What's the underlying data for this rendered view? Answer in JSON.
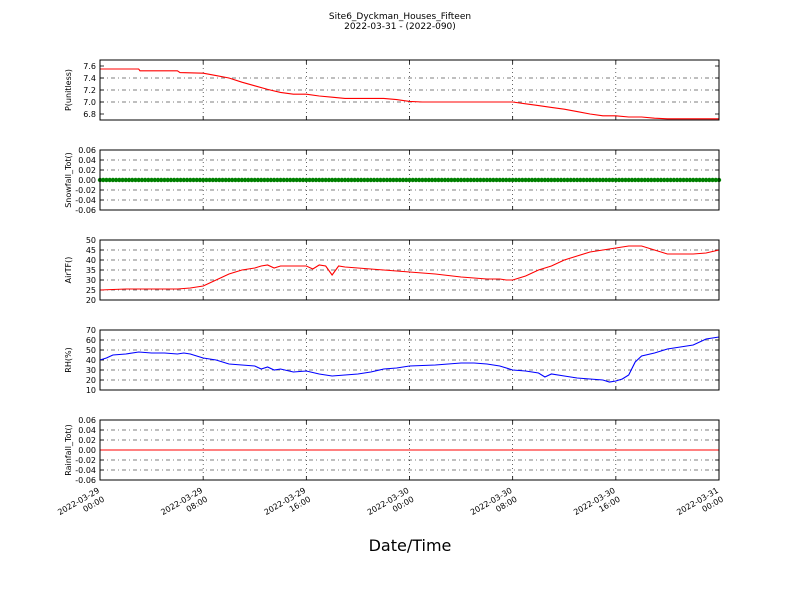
{
  "figure": {
    "title_line1": "Site6_Dyckman_Houses_Fifteen",
    "title_line2": "2022-03-31 - (2022-090)",
    "xlabel": "Date/Time",
    "x_ticks": [
      {
        "line1": "2022-03-29",
        "line2": "00:00",
        "t": 0
      },
      {
        "line1": "2022-03-29",
        "line2": "08:00",
        "t": 8
      },
      {
        "line1": "2022-03-29",
        "line2": "16:00",
        "t": 16
      },
      {
        "line1": "2022-03-30",
        "line2": "00:00",
        "t": 24
      },
      {
        "line1": "2022-03-30",
        "line2": "08:00",
        "t": 32
      },
      {
        "line1": "2022-03-30",
        "line2": "16:00",
        "t": 40
      },
      {
        "line1": "2022-03-31",
        "line2": "00:00",
        "t": 48
      }
    ]
  },
  "chart_data": [
    {
      "type": "line",
      "ylabel": "P(unitless)",
      "ylim": [
        6.7,
        7.7
      ],
      "yticks": [
        "6.8",
        "7.0",
        "7.2",
        "7.4",
        "7.6"
      ],
      "grid": true,
      "color": "#ff0000",
      "x": [
        0,
        3,
        3.1,
        6,
        6.2,
        8,
        9,
        10,
        11,
        12,
        13,
        14,
        15,
        16,
        17,
        18,
        19,
        20,
        21,
        22,
        23,
        24,
        25,
        26,
        27,
        28,
        29,
        30,
        31,
        32,
        33,
        34,
        35,
        36,
        37,
        38,
        39,
        40,
        41,
        42,
        43,
        44,
        45,
        46,
        47,
        48
      ],
      "values": [
        7.55,
        7.55,
        7.52,
        7.52,
        7.49,
        7.48,
        7.44,
        7.4,
        7.33,
        7.27,
        7.21,
        7.16,
        7.13,
        7.13,
        7.1,
        7.08,
        7.06,
        7.06,
        7.06,
        7.06,
        7.04,
        7.01,
        7.0,
        7.0,
        7.0,
        7.0,
        7.0,
        7.0,
        7.0,
        7.0,
        6.97,
        6.94,
        6.91,
        6.88,
        6.84,
        6.8,
        6.77,
        6.77,
        6.75,
        6.75,
        6.73,
        6.72,
        6.72,
        6.72,
        6.72,
        6.72
      ]
    },
    {
      "type": "scatter",
      "ylabel": "Snowfall_Tot()",
      "ylim": [
        -0.06,
        0.06
      ],
      "yticks": [
        "-0.06",
        "-0.04",
        "-0.02",
        "0.00",
        "0.02",
        "0.04",
        "0.06"
      ],
      "grid": true,
      "color": "#008000",
      "x_range": [
        0,
        48
      ],
      "constant_value": 0.0
    },
    {
      "type": "line",
      "ylabel": "AirTF()",
      "ylim": [
        20,
        50
      ],
      "yticks": [
        "20",
        "25",
        "30",
        "35",
        "40",
        "45",
        "50"
      ],
      "grid": true,
      "color": "#ff0000",
      "x": [
        0,
        2,
        4,
        6,
        7,
        7.5,
        8,
        9,
        10,
        11,
        12,
        12.5,
        13,
        13.5,
        14,
        15,
        16,
        16.5,
        17,
        17.5,
        18,
        18.5,
        19,
        20,
        22,
        24,
        26,
        28,
        29,
        30,
        31,
        31.5,
        32,
        33,
        34,
        35,
        36,
        37,
        38,
        39,
        40,
        41,
        42,
        43,
        44,
        45,
        46,
        47,
        48
      ],
      "values": [
        25,
        25.5,
        25.5,
        25.5,
        26,
        26.5,
        27,
        30,
        33,
        35,
        36,
        37,
        37.5,
        36,
        37,
        37,
        37,
        35.5,
        37.5,
        37,
        32.5,
        37,
        36.5,
        36,
        35,
        34,
        33,
        31.5,
        31,
        30.5,
        30.5,
        30,
        30,
        32,
        35,
        37,
        40,
        42,
        44,
        45,
        46,
        47,
        47,
        45,
        43,
        43,
        43,
        43.5,
        45
      ]
    },
    {
      "type": "line",
      "ylabel": "RH(%)",
      "ylim": [
        10,
        70
      ],
      "yticks": [
        "10",
        "20",
        "30",
        "40",
        "50",
        "60",
        "70"
      ],
      "grid": true,
      "color": "#0000ff",
      "x": [
        0,
        0.5,
        1,
        2,
        3,
        4,
        5,
        6,
        6.5,
        7,
        7.5,
        8,
        9,
        10,
        11,
        12,
        12.5,
        13,
        13.5,
        14,
        15,
        16,
        17,
        18,
        19,
        20,
        21,
        22,
        23,
        24,
        26,
        28,
        29,
        30,
        31,
        32,
        33,
        34,
        34.5,
        35,
        36,
        37,
        38,
        39,
        39.5,
        40,
        40.5,
        41,
        41.5,
        42,
        43,
        44,
        45,
        46,
        47,
        48
      ],
      "values": [
        40,
        42,
        45,
        46,
        48,
        47,
        47,
        46,
        47,
        46,
        44,
        42,
        40,
        36,
        35,
        34,
        31,
        33,
        30,
        31,
        28,
        29,
        26,
        24,
        25,
        26,
        28,
        31,
        32,
        34,
        35,
        37,
        37,
        36,
        34,
        30,
        29,
        27,
        23,
        26,
        24,
        22,
        21,
        20,
        18,
        19,
        21,
        25,
        38,
        44,
        47,
        51,
        53,
        55,
        61,
        63
      ]
    },
    {
      "type": "line",
      "ylabel": "Rainfall_Tot()",
      "ylim": [
        -0.06,
        0.06
      ],
      "yticks": [
        "-0.06",
        "-0.04",
        "-0.02",
        "0.00",
        "0.02",
        "0.04",
        "0.06"
      ],
      "grid": true,
      "color": "#ff0000",
      "x": [
        0,
        48
      ],
      "values": [
        0.0,
        0.0
      ]
    }
  ]
}
